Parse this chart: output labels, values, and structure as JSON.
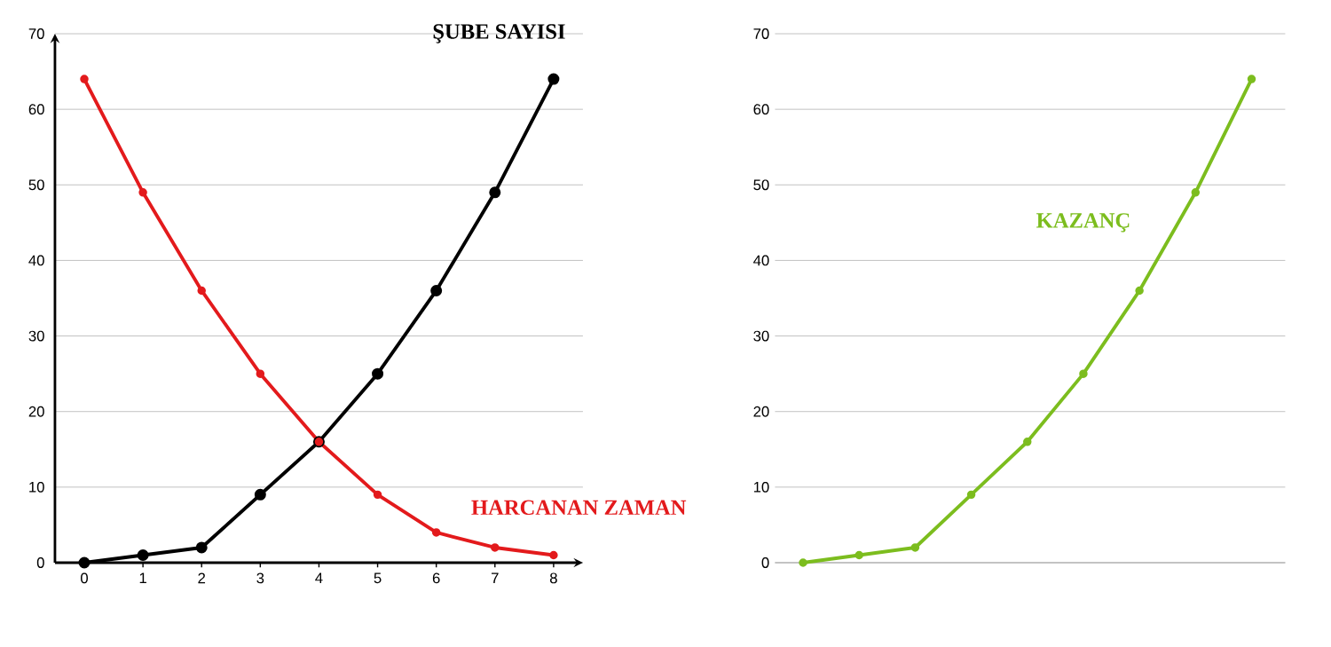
{
  "chart_data": [
    {
      "type": "line",
      "x": [
        0,
        1,
        2,
        3,
        4,
        5,
        6,
        7,
        8
      ],
      "series": [
        {
          "name": "ŞUBE SAYISI",
          "color": "#000000",
          "values": [
            0,
            1,
            2,
            9,
            16,
            25,
            36,
            49,
            64
          ]
        },
        {
          "name": "HARCANAN ZAMAN",
          "color": "#e31a1c",
          "values": [
            64,
            49,
            36,
            25,
            16,
            9,
            4,
            2,
            1
          ]
        }
      ],
      "xlim": [
        -0.5,
        8.5
      ],
      "ylim": [
        0,
        70
      ],
      "xticks": [
        0,
        1,
        2,
        3,
        4,
        5,
        6,
        7,
        8
      ],
      "yticks": [
        0,
        10,
        20,
        30,
        40,
        50,
        60,
        70
      ],
      "grid": "y",
      "marker": "circle"
    },
    {
      "type": "line",
      "categories": [
        null,
        null,
        null,
        null,
        null,
        null,
        null,
        null,
        null
      ],
      "series": [
        {
          "name": "KAZANÇ",
          "color": "#7cbd1e",
          "values": [
            0,
            1,
            2,
            9,
            16,
            25,
            36,
            49,
            64
          ]
        }
      ],
      "ylim": [
        0,
        70
      ],
      "yticks": [
        0,
        10,
        20,
        30,
        40,
        50,
        60,
        70
      ],
      "grid": "y",
      "marker": "circle",
      "tick_labels": "y"
    }
  ]
}
